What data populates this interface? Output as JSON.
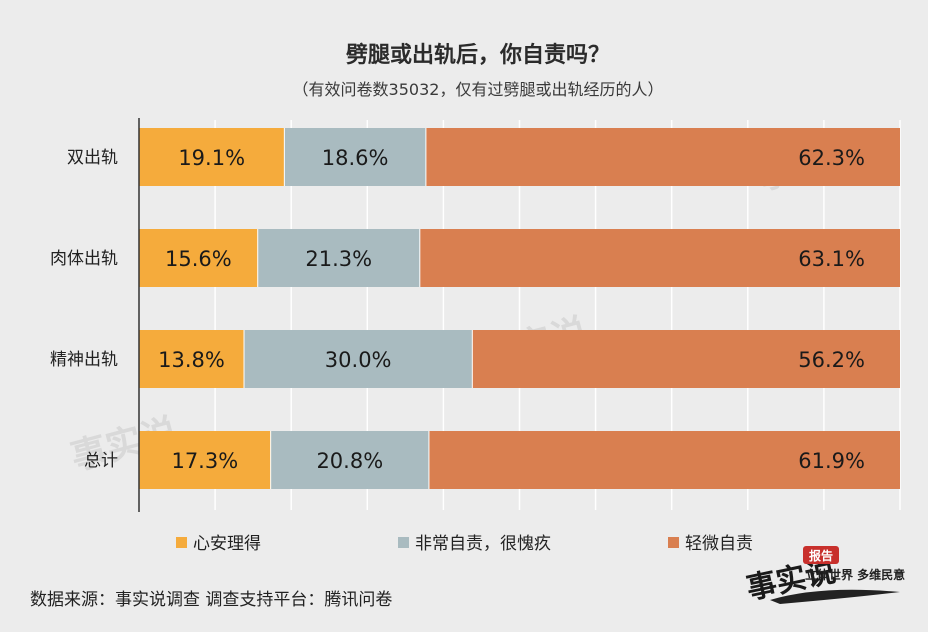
{
  "chart_data": {
    "type": "bar",
    "orientation": "horizontal",
    "stacked": "percent",
    "title": "劈腿或出轨后，你自责吗？",
    "subtitle": "（有效问卷数35032，仅有过劈腿或出轨经历的人）",
    "categories": [
      "双出轨",
      "肉体出轨",
      "精神出轨",
      "总计"
    ],
    "series": [
      {
        "name": "心安理得",
        "values": [
          19.1,
          15.6,
          13.8,
          17.3
        ],
        "labels": [
          "19.1%",
          "15.6%",
          "13.8%",
          "17.3%"
        ]
      },
      {
        "name": "非常自责，很愧疚",
        "values": [
          18.6,
          21.3,
          30.0,
          20.8
        ],
        "labels": [
          "18.6%",
          "21.3%",
          "30.0%",
          "20.8%"
        ]
      },
      {
        "name": "轻微自责",
        "values": [
          62.3,
          63.1,
          56.2,
          61.9
        ],
        "labels": [
          "62.3%",
          "63.1%",
          "56.2%",
          "61.9%"
        ]
      }
    ],
    "xlim": [
      0,
      100
    ],
    "grid": true,
    "legend_position": "bottom"
  },
  "colors": {
    "series": [
      "#f5ab3c",
      "#a9bbc0",
      "#d97f50"
    ],
    "background": "#ececec",
    "grid": "#ffffff"
  },
  "source_note": "数据来源：事实说调查  调查支持平台：腾讯问卷",
  "logo": {
    "badge": "报告",
    "tagline": "立体世界 多维民意",
    "mark": "事实说"
  }
}
